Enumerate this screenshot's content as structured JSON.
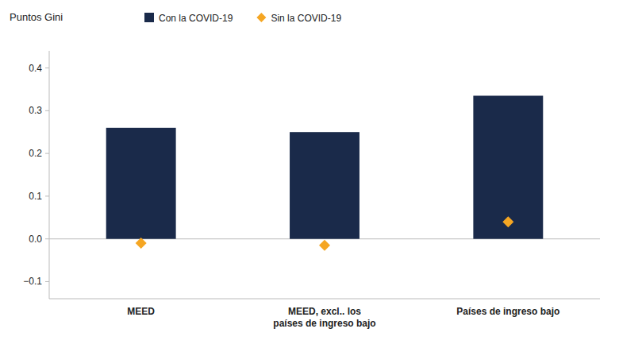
{
  "chart_data": {
    "type": "bar",
    "ylabel": "Puntos Gini",
    "categories": [
      "MEED",
      "MEED, excl.. los\npaíses de ingreso bajo",
      "Países de ingreso bajo"
    ],
    "series": [
      {
        "name": "Con la COVID-19",
        "type": "bar",
        "color": "#1a2a4a",
        "values": [
          0.26,
          0.25,
          0.335
        ]
      },
      {
        "name": "Sin la COVID-19",
        "type": "scatter",
        "marker": "diamond",
        "color": "#f5a623",
        "values": [
          -0.01,
          -0.015,
          0.04
        ]
      }
    ],
    "ylim": [
      -0.14,
      0.44
    ],
    "yticks": [
      {
        "value": -0.1,
        "label": "−0.1"
      },
      {
        "value": 0.0,
        "label": "0.0"
      },
      0.1,
      0.2,
      0.3,
      0.4
    ],
    "grid": false,
    "legend": "top"
  }
}
